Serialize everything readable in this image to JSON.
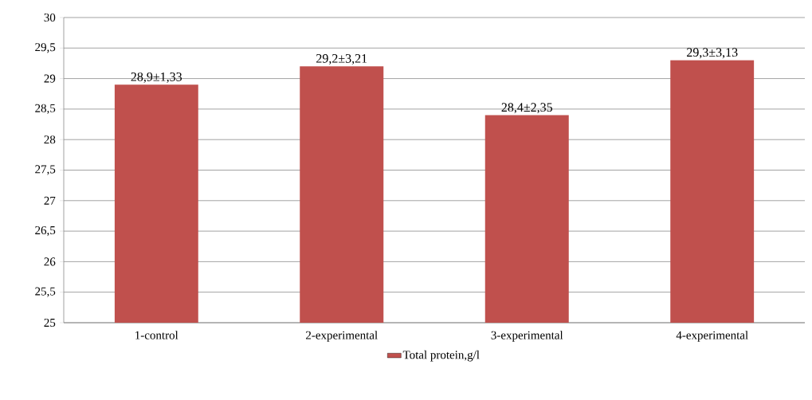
{
  "chart_data": {
    "type": "bar",
    "categories": [
      "1-control",
      "2-experimental",
      "3-experimental",
      "4-experimental"
    ],
    "series": [
      {
        "name": "Total protein,g/l",
        "color": "#c0504d",
        "values": [
          28.9,
          29.2,
          28.4,
          29.3
        ],
        "value_labels": [
          "28,9±1,33",
          "29,2±3,21",
          "28,4±2,35",
          "29,3±3,13"
        ]
      }
    ],
    "ylim": [
      25,
      30
    ],
    "yticks": [
      25,
      {
        "value": 25.5,
        "label": "25,5"
      },
      26,
      {
        "value": 26.5,
        "label": "26,5"
      },
      27,
      {
        "value": 27.5,
        "label": "27,5"
      },
      28,
      {
        "value": 28.5,
        "label": "28,5"
      },
      29,
      {
        "value": 29.5,
        "label": "29,5"
      },
      30
    ],
    "grid": "y",
    "legend": "bottom"
  }
}
